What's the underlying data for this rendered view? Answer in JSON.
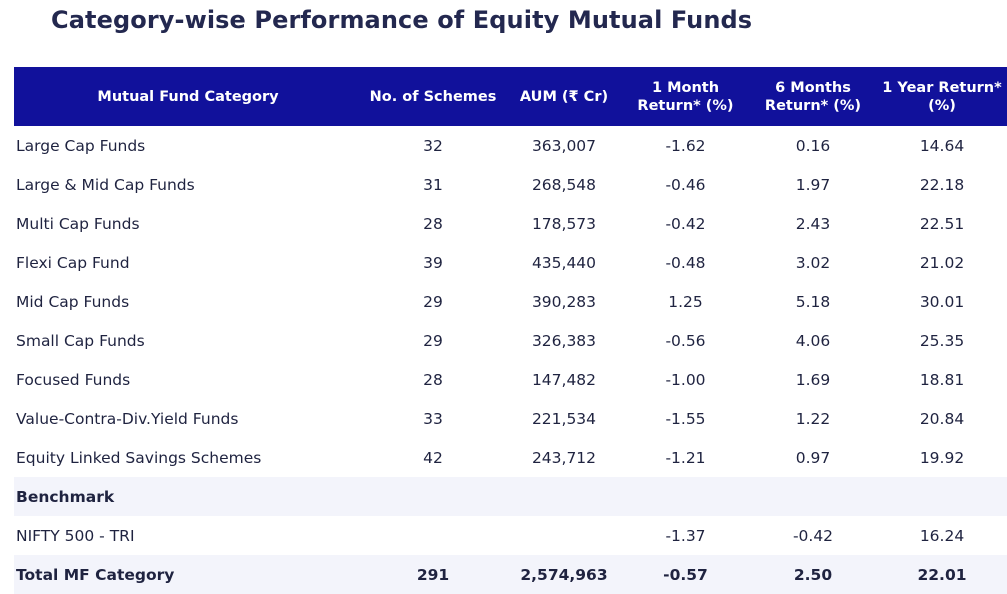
{
  "title": "Category-wise Performance of Equity Mutual Funds",
  "header": {
    "category": "Mutual Fund Category",
    "schemes": "No. of Schemes",
    "aum": "AUM (₹ Cr)",
    "m1_line1": "1 Month",
    "m1_line2": "Return* (%)",
    "m6_line1": "6 Months",
    "m6_line2": "Return* (%)",
    "y1_line1": "1 Year Return*",
    "y1_line2": "(%)"
  },
  "rows": [
    {
      "category": "Large Cap Funds",
      "schemes": "32",
      "aum": "363,007",
      "m1": "-1.62",
      "m6": "0.16",
      "y1": "14.64"
    },
    {
      "category": "Large & Mid Cap Funds",
      "schemes": "31",
      "aum": "268,548",
      "m1": "-0.46",
      "m6": "1.97",
      "y1": "22.18"
    },
    {
      "category": "Multi Cap Funds",
      "schemes": "28",
      "aum": "178,573",
      "m1": "-0.42",
      "m6": "2.43",
      "y1": "22.51"
    },
    {
      "category": "Flexi Cap Fund",
      "schemes": "39",
      "aum": "435,440",
      "m1": "-0.48",
      "m6": "3.02",
      "y1": "21.02"
    },
    {
      "category": "Mid Cap Funds",
      "schemes": "29",
      "aum": "390,283",
      "m1": "1.25",
      "m6": "5.18",
      "y1": "30.01"
    },
    {
      "category": "Small Cap Funds",
      "schemes": "29",
      "aum": "326,383",
      "m1": "-0.56",
      "m6": "4.06",
      "y1": "25.35"
    },
    {
      "category": "Focused Funds",
      "schemes": "28",
      "aum": "147,482",
      "m1": "-1.00",
      "m6": "1.69",
      "y1": "18.81"
    },
    {
      "category": "Value-Contra-Div.Yield Funds",
      "schemes": "33",
      "aum": "221,534",
      "m1": "-1.55",
      "m6": "1.22",
      "y1": "20.84"
    },
    {
      "category": "Equity Linked Savings Schemes",
      "schemes": "42",
      "aum": "243,712",
      "m1": "-1.21",
      "m6": "0.97",
      "y1": "19.92"
    }
  ],
  "benchmark": {
    "label": "Benchmark",
    "category": "NIFTY 500 - TRI",
    "schemes": "",
    "aum": "",
    "m1": "-1.37",
    "m6": "-0.42",
    "y1": "16.24"
  },
  "total": {
    "category": "Total MF Category",
    "schemes": "291",
    "aum": "2,574,963",
    "m1": "-0.57",
    "m6": "2.50",
    "y1": "22.01"
  },
  "colors": {
    "header_bg": "#11119b",
    "header_text": "#ffffff",
    "title_text": "#23284f",
    "alt_row_bg": "#f3f4fb"
  }
}
